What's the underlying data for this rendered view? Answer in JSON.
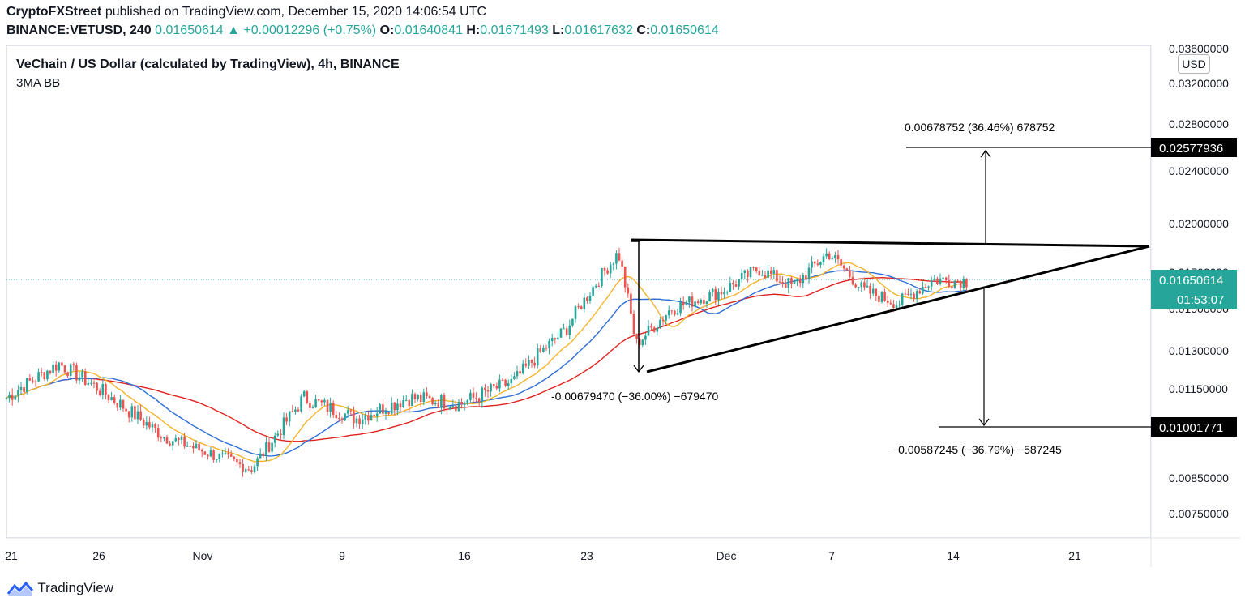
{
  "header": {
    "publisher": "CryptoFXStreet",
    "published_text": "published on TradingView.com, December 15, 2020 14:06:54 UTC",
    "symbol": "BINANCE:VETUSD, 240",
    "last": "0.01650614",
    "change": "+0.00012296 (+0.75%)",
    "o_label": "O:",
    "o_value": "0.01640841",
    "h_label": "H:",
    "h_value": "0.01671493",
    "l_label": "L:",
    "l_value": "0.01617632",
    "c_label": "C:",
    "c_value": "0.01650614"
  },
  "legend": {
    "title": "VeChain / US Dollar (calculated by TradingView), 4h, BINANCE",
    "indicator": "3MA BB"
  },
  "currency_label": "USD",
  "footer": {
    "brand": "TradingView"
  },
  "colors": {
    "up": "#26a69a",
    "down": "#ef5350",
    "ma_short": "#f5b32a",
    "ma_mid": "#2f6fd6",
    "ma_long": "#e0221f",
    "price_badge": "#26a69a"
  },
  "chart_data": {
    "type": "candlestick",
    "y_ticks": [
      "0.03600000",
      "0.03200000",
      "0.02800000",
      "0.02400000",
      "0.02000000",
      "0.01700000",
      "0.01500000",
      "0.01300000",
      "0.01150000",
      "0.00850000",
      "0.00750000"
    ],
    "x_ticks": [
      "21",
      "26",
      "Nov",
      "9",
      "16",
      "23",
      "Dec",
      "7",
      "14",
      "21"
    ],
    "current_price": "0.01650614",
    "countdown": "01:53:07",
    "target_up": "0.02577936",
    "target_down": "0.01001771",
    "annotations": {
      "measure_up": "0.00678752 (36.46%) 678752",
      "measure_left": "-0.00679470 (−36.00%) −679470",
      "measure_down": "−0.00587245 (−36.79%) −587245"
    },
    "pattern": "symmetrical triangle",
    "anchors": [
      {
        "date": "2020-10-21",
        "price": 0.0112
      },
      {
        "date": "2020-10-24",
        "price": 0.0125
      },
      {
        "date": "2020-10-30",
        "price": 0.0099
      },
      {
        "date": "2020-11-04",
        "price": 0.0088
      },
      {
        "date": "2020-11-07",
        "price": 0.0112
      },
      {
        "date": "2020-11-10",
        "price": 0.0105
      },
      {
        "date": "2020-11-13",
        "price": 0.0112
      },
      {
        "date": "2020-11-16",
        "price": 0.011
      },
      {
        "date": "2020-11-19",
        "price": 0.0118
      },
      {
        "date": "2020-11-22",
        "price": 0.014
      },
      {
        "date": "2020-11-25",
        "price": 0.0182
      },
      {
        "date": "2020-11-26",
        "price": 0.0133
      },
      {
        "date": "2020-11-28",
        "price": 0.015
      },
      {
        "date": "2020-12-01",
        "price": 0.016
      },
      {
        "date": "2020-12-03",
        "price": 0.0172
      },
      {
        "date": "2020-12-05",
        "price": 0.0162
      },
      {
        "date": "2020-12-07",
        "price": 0.0182
      },
      {
        "date": "2020-12-09",
        "price": 0.016
      },
      {
        "date": "2020-12-11",
        "price": 0.0153
      },
      {
        "date": "2020-12-13",
        "price": 0.0166
      },
      {
        "date": "2020-12-15",
        "price": 0.0165
      }
    ]
  }
}
